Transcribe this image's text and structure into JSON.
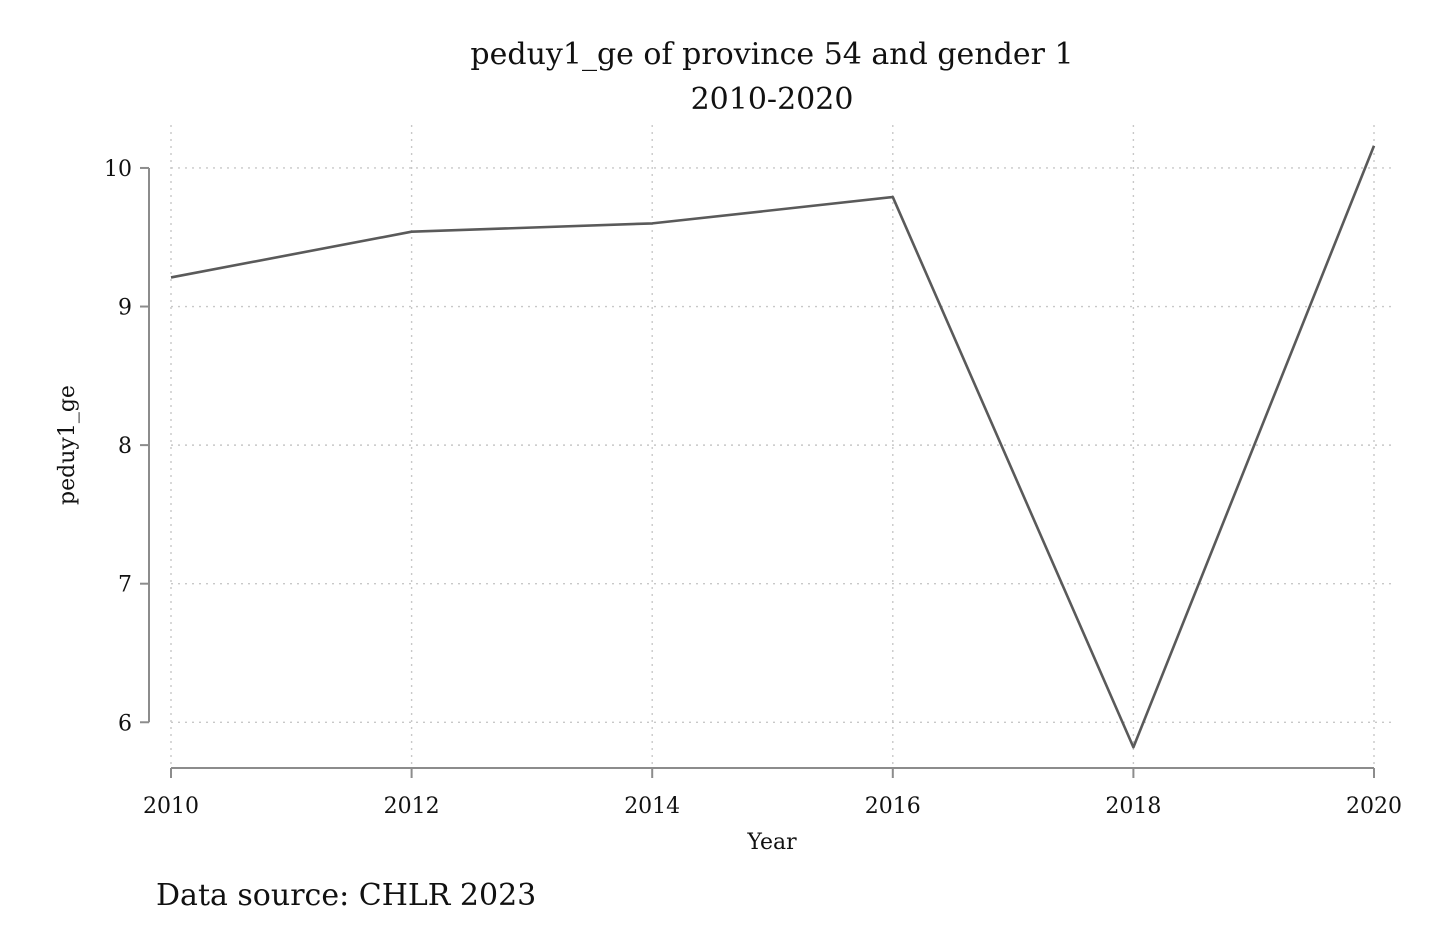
{
  "chart_data": {
    "type": "line",
    "title": "peduy1_ge of province 54 and gender 1",
    "subtitle": "2010-2020",
    "xlabel": "Year",
    "ylabel": "peduy1_ge",
    "x": [
      2010,
      2012,
      2014,
      2016,
      2018,
      2020
    ],
    "series": [
      {
        "values": [
          9.21,
          9.54,
          9.6,
          9.79,
          5.82,
          10.16
        ],
        "color": "#5a5a5a"
      }
    ],
    "xticks": [
      "2010",
      "2012",
      "2014",
      "2016",
      "2018",
      "2020"
    ],
    "yticks": [
      "6",
      "7",
      "8",
      "9",
      "10"
    ],
    "xlim": [
      2010,
      2020
    ],
    "ylim": [
      5.67,
      10.31
    ],
    "grid": true,
    "legend": "none",
    "note": "Data source: CHLR 2023"
  }
}
